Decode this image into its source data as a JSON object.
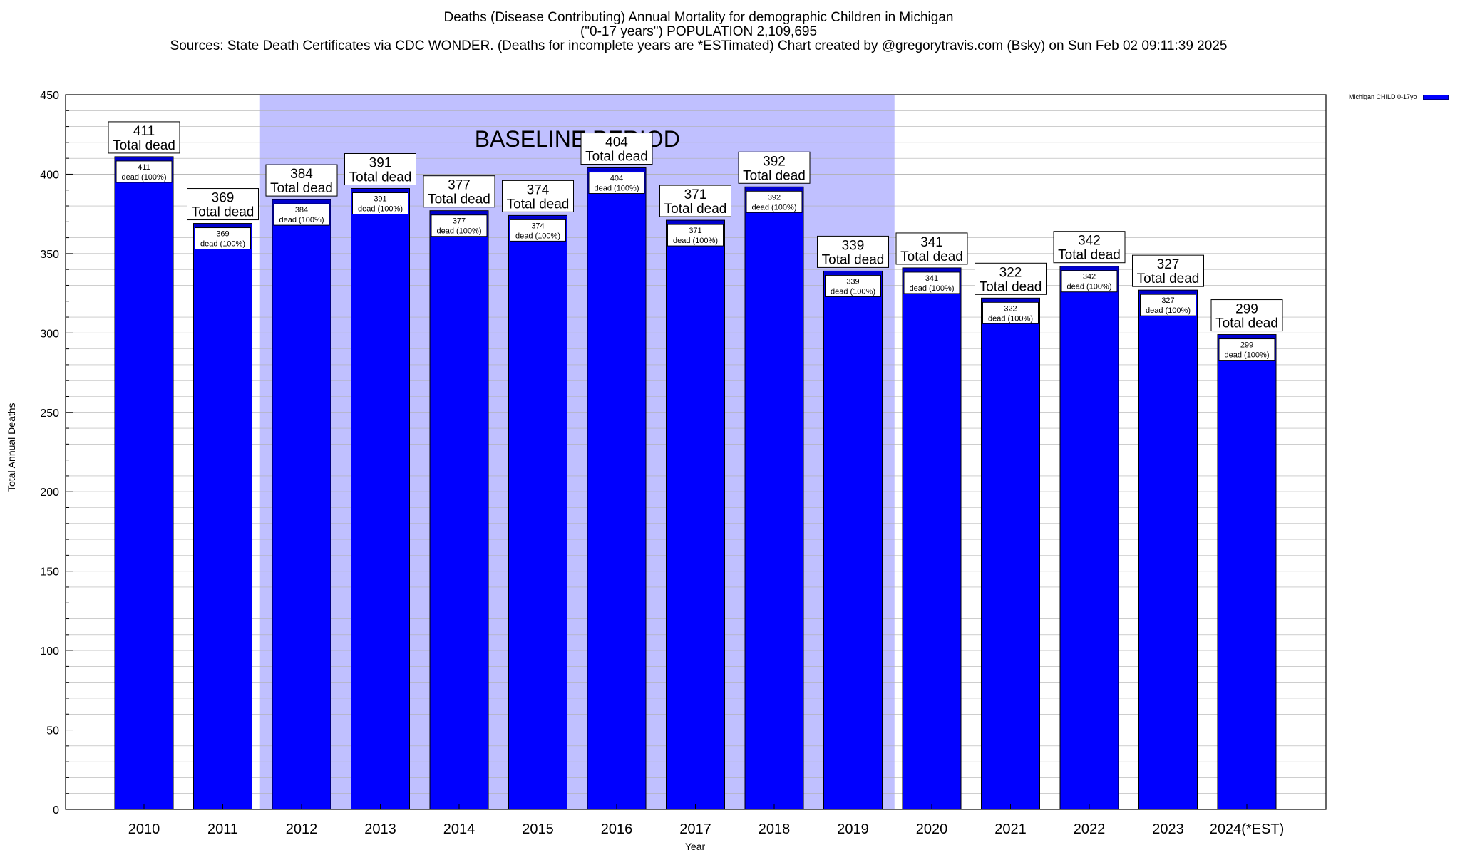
{
  "title_lines": [
    "Deaths (Disease Contributing) Annual Mortality for demographic Children in Michigan",
    "(\"0-17 years\") POPULATION 2,109,695",
    "Sources: State Death Certificates via CDC WONDER. (Deaths for incomplete years are *ESTimated)                Chart created by @gregorytravis.com (Bsky) on Sun Feb 02 09:11:39 2025"
  ],
  "colors": {
    "bar": "#0000ff",
    "baseline_band": "#c0c0ff",
    "grid": "#b0b0b0"
  },
  "chart_data": {
    "type": "bar",
    "title": "Deaths (Disease Contributing) Annual Mortality for demographic Children in Michigan",
    "subtitle": "(\"0-17 years\") POPULATION 2,109,695",
    "xlabel": "Year",
    "ylabel": "Total Annual Deaths",
    "ylim": [
      0,
      450
    ],
    "y_ticks": [
      0,
      50,
      100,
      150,
      200,
      250,
      300,
      350,
      400,
      450
    ],
    "grid": true,
    "legend": {
      "label": "Michigan CHILD 0-17yo",
      "placement": "top-right outside"
    },
    "categories": [
      "2010",
      "2011",
      "2012",
      "2013",
      "2014",
      "2015",
      "2016",
      "2017",
      "2018",
      "2019",
      "2020",
      "2021",
      "2022",
      "2023",
      "2024(*EST)"
    ],
    "values": [
      411,
      369,
      384,
      391,
      377,
      374,
      404,
      371,
      392,
      339,
      341,
      322,
      342,
      327,
      299
    ],
    "total_label_suffix": "Total dead",
    "inner_label_suffix": "dead (100%)",
    "baseline_period": {
      "label": "BASELINE PERIOD",
      "start": "2012",
      "end": "2019"
    }
  }
}
